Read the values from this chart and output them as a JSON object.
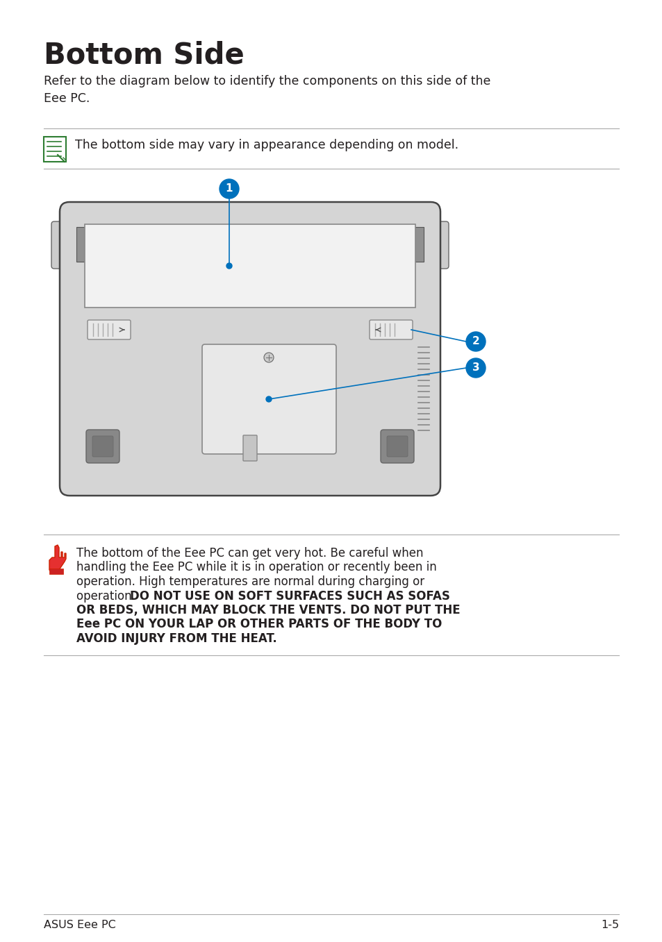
{
  "title": "Bottom Side",
  "subtitle": "Refer to the diagram below to identify the components on this side of the\nEee PC.",
  "note_text": "The bottom side may vary in appearance depending on model.",
  "footer_left": "ASUS Eee PC",
  "footer_right": "1-5",
  "bg_color": "#ffffff",
  "text_color": "#231f20",
  "blue_color": "#0071bc",
  "line_color": "#aaaaaa",
  "device_body_fill": "#d5d5d5",
  "device_body_stroke": "#444444",
  "battery_fill": "#efefef",
  "battery_stroke": "#777777",
  "mem_fill": "#e0e0e0",
  "mem_stroke": "#666666",
  "latch_fill": "#e8e8e8",
  "rubber_fill": "#777777",
  "hinge_fill": "#999999",
  "vent_color": "#888888",
  "note_green": "#2e7d32",
  "warn_red": "#cc2200",
  "warn_text_1": "The bottom of the Eee PC can get very hot. Be careful when handling the Eee PC while it is in operation or recently been in operation. High temperatures are normal during charging or operation. ",
  "warn_text_2": "DO NOT USE ON SOFT SURFACES SUCH AS SOFAS OR BEDS, WHICH MAY BLOCK THE VENTS. DO NOT PUT THE Eee PC ON YOUR LAP OR OTHER PARTS OF THE BODY TO AVOID INJURY FROM THE HEAT."
}
